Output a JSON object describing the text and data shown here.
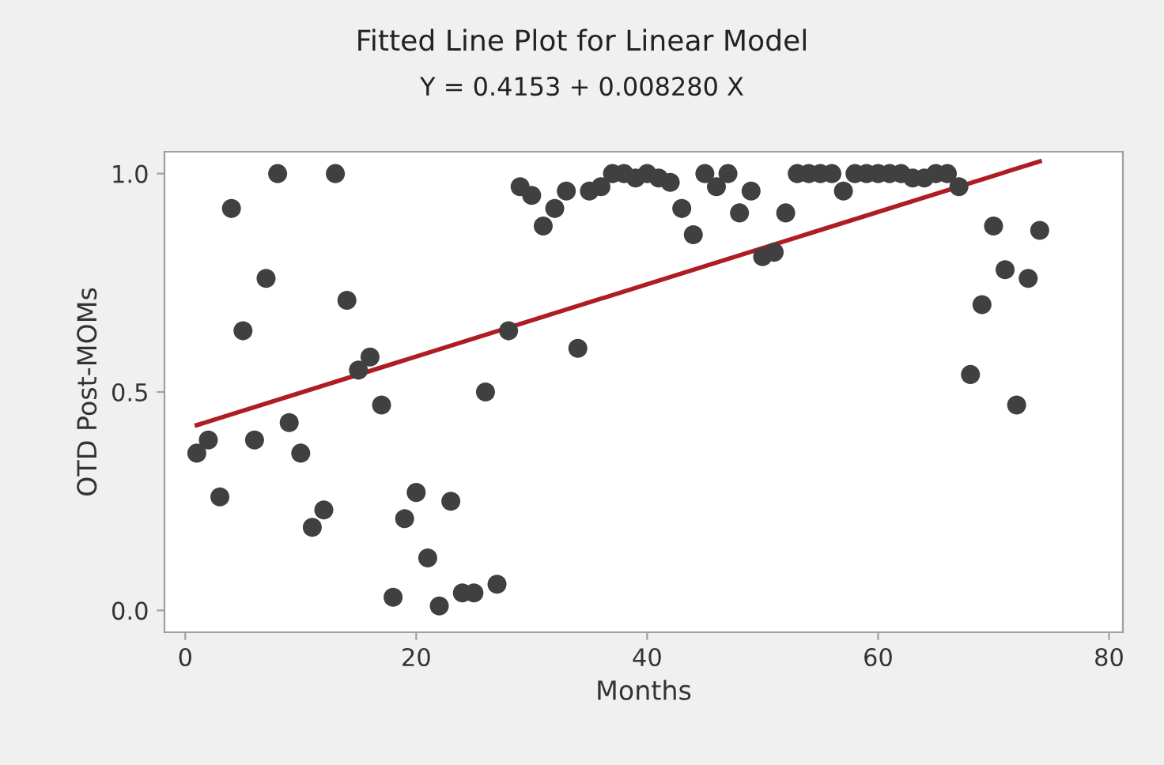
{
  "chart_data": {
    "type": "scatter",
    "title": "Fitted Line Plot for Linear Model",
    "subtitle": "Y = 0.4153 + 0.008280 X",
    "xlabel": "Months",
    "ylabel": "OTD Post-MOMs",
    "xlim": [
      -1.8,
      81.2
    ],
    "xticks": [
      0,
      20,
      40,
      60,
      80
    ],
    "ylim": [
      -0.05,
      1.05
    ],
    "yticks": [
      {
        "value": 0,
        "label": "0.0"
      },
      {
        "value": 0.5,
        "label": "0.5"
      },
      {
        "value": 1,
        "label": "1.0"
      }
    ],
    "grid": false,
    "legend": false,
    "series": [
      {
        "color": "#404040",
        "marker": "circle",
        "x": [
          1,
          2,
          3,
          4,
          5,
          6,
          7,
          8,
          9,
          10,
          11,
          12,
          13,
          14,
          15,
          16,
          17,
          18,
          19,
          20,
          21,
          22,
          23,
          24,
          25,
          26,
          27,
          28,
          29,
          30,
          31,
          32,
          33,
          34,
          35,
          36,
          37,
          38,
          39,
          40,
          41,
          42,
          43,
          44,
          45,
          46,
          47,
          48,
          49,
          50,
          51,
          52,
          53,
          54,
          55,
          56,
          57,
          58,
          59,
          60,
          61,
          62,
          63,
          64,
          65,
          66,
          67,
          68,
          69,
          70,
          71,
          72,
          73,
          74
        ],
        "values": [
          0.36,
          0.39,
          0.26,
          0.92,
          0.64,
          0.39,
          0.76,
          1.0,
          0.43,
          0.36,
          0.19,
          0.23,
          1.0,
          0.71,
          0.55,
          0.58,
          0.47,
          0.03,
          0.21,
          0.27,
          0.12,
          0.01,
          0.25,
          0.04,
          0.04,
          0.5,
          0.06,
          0.64,
          0.97,
          0.95,
          0.88,
          0.92,
          0.96,
          0.6,
          0.96,
          0.97,
          1.0,
          1.0,
          0.99,
          1.0,
          0.99,
          0.98,
          0.92,
          0.86,
          1.0,
          0.97,
          1.0,
          0.91,
          0.96,
          0.81,
          0.82,
          0.91,
          1.0,
          1.0,
          1.0,
          1.0,
          0.96,
          1.0,
          1.0,
          1.0,
          1.0,
          1.0,
          0.99,
          0.99,
          1.0,
          1.0,
          0.97,
          0.54,
          0.7,
          0.88,
          0.78,
          0.47,
          0.76,
          0.87
        ]
      },
      {
        "type": "line",
        "color": "#b01c24",
        "marker": "none",
        "line_style": "solid",
        "x": [
          1,
          74
        ],
        "values": [
          0.424,
          1.028
        ]
      }
    ]
  }
}
